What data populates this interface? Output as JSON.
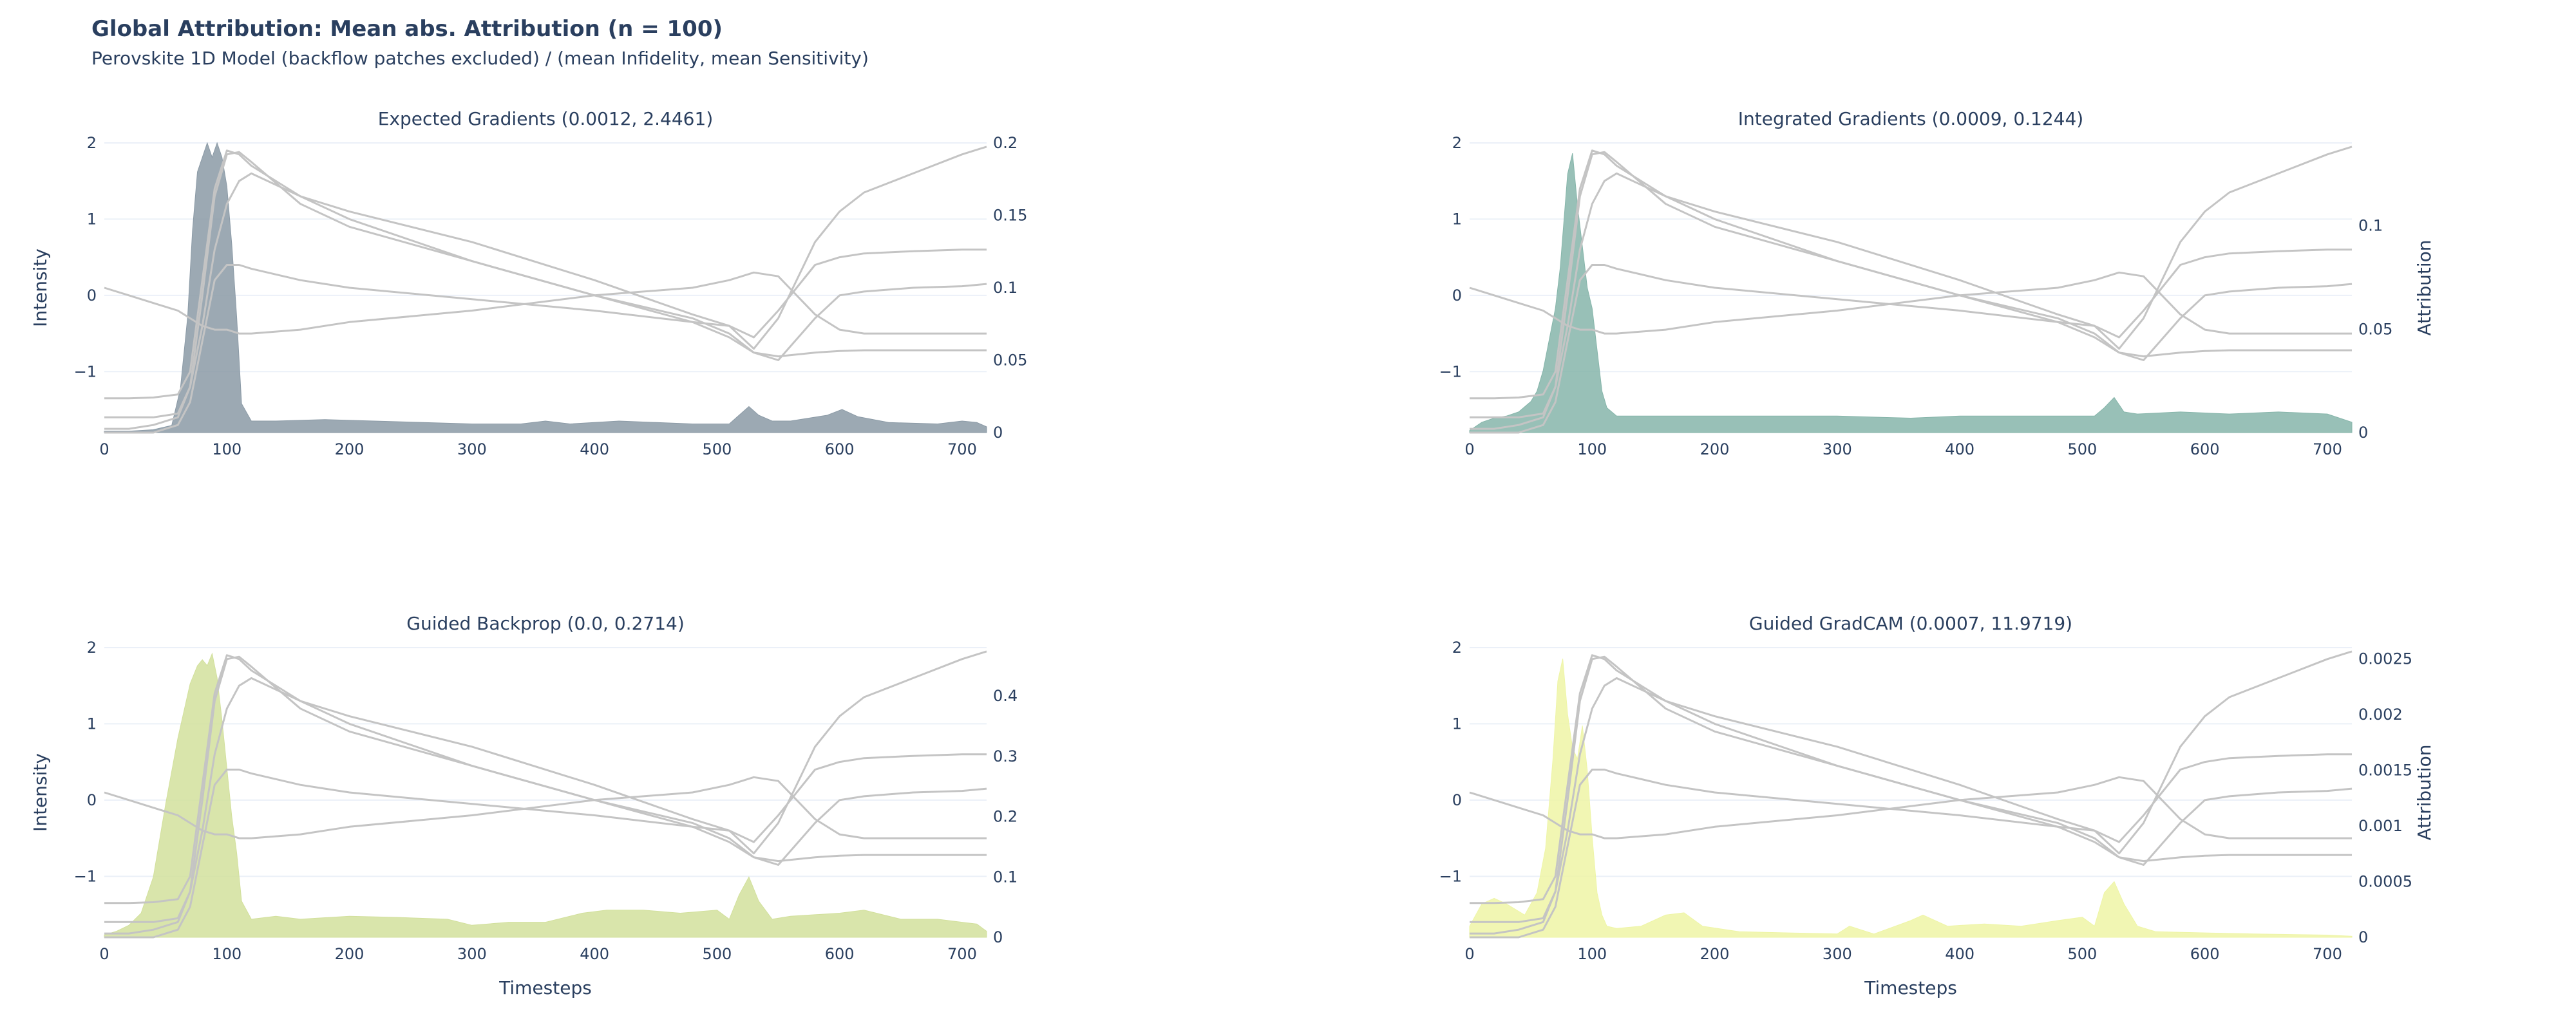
{
  "figure": {
    "title": "Global Attribution: Mean abs. Attribution (n = 100)",
    "subtitle": "Perovskite 1D Model (backflow patches excluded) / (mean Infidelity, mean Sensitivity)"
  },
  "chart_data": [
    {
      "type": "area",
      "title": "Expected Gradients (0.0012, 2.4461)",
      "xlabel": "",
      "ylabel": "Intensity",
      "y2label": "",
      "xlim": [
        0,
        720
      ],
      "ylim": [
        -1.8,
        2.0
      ],
      "y2lim": [
        0,
        0.2
      ],
      "xticks": [
        "0",
        "100",
        "200",
        "300",
        "400",
        "500",
        "600",
        "700"
      ],
      "yticks": [
        "2",
        "1",
        "0",
        "−1"
      ],
      "y2ticks": [
        "0.2",
        "0.15",
        "0.1",
        "0.05",
        "0"
      ],
      "fill_color": "#8b9aa6",
      "attribution": {
        "x": [
          0,
          20,
          40,
          55,
          62,
          68,
          72,
          76,
          80,
          84,
          88,
          92,
          96,
          100,
          104,
          108,
          112,
          120,
          140,
          180,
          220,
          260,
          300,
          340,
          360,
          380,
          420,
          480,
          510,
          518,
          526,
          534,
          545,
          560,
          590,
          602,
          615,
          640,
          680,
          700,
          712,
          720
        ],
        "y": [
          0.001,
          0.001,
          0.002,
          0.005,
          0.03,
          0.08,
          0.14,
          0.18,
          0.19,
          0.2,
          0.19,
          0.2,
          0.19,
          0.17,
          0.13,
          0.08,
          0.02,
          0.008,
          0.008,
          0.009,
          0.008,
          0.007,
          0.006,
          0.006,
          0.008,
          0.006,
          0.008,
          0.006,
          0.006,
          0.012,
          0.018,
          0.012,
          0.008,
          0.008,
          0.012,
          0.016,
          0.011,
          0.007,
          0.006,
          0.008,
          0.007,
          0.004
        ]
      }
    },
    {
      "type": "area",
      "title": "Integrated Gradients (0.0009, 0.1244)",
      "xlabel": "",
      "ylabel": "",
      "y2label": "Attribution",
      "xlim": [
        0,
        720
      ],
      "ylim": [
        -1.8,
        2.0
      ],
      "y2lim": [
        0,
        0.14
      ],
      "xticks": [
        "0",
        "100",
        "200",
        "300",
        "400",
        "500",
        "600",
        "700"
      ],
      "yticks": [
        "2",
        "1",
        "0",
        "−1"
      ],
      "y2ticks": [
        "0.1",
        "0.05",
        "0"
      ],
      "fill_color": "#86b5aa",
      "attribution": {
        "x": [
          0,
          10,
          20,
          30,
          40,
          50,
          55,
          60,
          65,
          70,
          74,
          78,
          80,
          84,
          88,
          92,
          96,
          100,
          104,
          108,
          112,
          120,
          140,
          180,
          220,
          300,
          360,
          400,
          440,
          480,
          510,
          518,
          526,
          534,
          545,
          580,
          620,
          660,
          700,
          720
        ],
        "y": [
          0.001,
          0.005,
          0.007,
          0.008,
          0.01,
          0.015,
          0.02,
          0.03,
          0.045,
          0.06,
          0.08,
          0.11,
          0.125,
          0.135,
          0.11,
          0.09,
          0.07,
          0.06,
          0.04,
          0.02,
          0.012,
          0.008,
          0.008,
          0.008,
          0.008,
          0.008,
          0.007,
          0.008,
          0.008,
          0.008,
          0.008,
          0.012,
          0.017,
          0.01,
          0.009,
          0.01,
          0.009,
          0.01,
          0.009,
          0.005
        ]
      }
    },
    {
      "type": "area",
      "title": "Guided Backprop (0.0, 0.2714)",
      "xlabel": "Timesteps",
      "ylabel": "Intensity",
      "y2label": "",
      "xlim": [
        0,
        720
      ],
      "ylim": [
        -1.8,
        2.0
      ],
      "y2lim": [
        0,
        0.48
      ],
      "xticks": [
        "0",
        "100",
        "200",
        "300",
        "400",
        "500",
        "600",
        "700"
      ],
      "yticks": [
        "2",
        "1",
        "0",
        "−1"
      ],
      "y2ticks": [
        "0.4",
        "0.3",
        "0.2",
        "0.1",
        "0"
      ],
      "fill_color": "#d2e09c",
      "attribution": {
        "x": [
          0,
          10,
          20,
          30,
          40,
          50,
          60,
          70,
          76,
          80,
          84,
          88,
          92,
          96,
          100,
          104,
          108,
          112,
          120,
          140,
          160,
          200,
          240,
          280,
          300,
          330,
          360,
          390,
          410,
          440,
          470,
          500,
          510,
          518,
          526,
          534,
          545,
          560,
          600,
          620,
          650,
          680,
          700,
          712,
          720
        ],
        "y": [
          0.004,
          0.01,
          0.02,
          0.04,
          0.1,
          0.22,
          0.33,
          0.42,
          0.45,
          0.46,
          0.45,
          0.47,
          0.43,
          0.36,
          0.28,
          0.2,
          0.14,
          0.06,
          0.03,
          0.035,
          0.03,
          0.035,
          0.033,
          0.03,
          0.02,
          0.025,
          0.025,
          0.04,
          0.045,
          0.045,
          0.04,
          0.045,
          0.03,
          0.07,
          0.1,
          0.06,
          0.03,
          0.035,
          0.04,
          0.045,
          0.03,
          0.03,
          0.025,
          0.022,
          0.01
        ]
      }
    },
    {
      "type": "area",
      "title": "Guided GradCAM (0.0007, 11.9719)",
      "xlabel": "Timesteps",
      "ylabel": "",
      "y2label": "Attribution",
      "xlim": [
        0,
        720
      ],
      "ylim": [
        -1.8,
        2.0
      ],
      "y2lim": [
        0,
        0.0026
      ],
      "xticks": [
        "0",
        "100",
        "200",
        "300",
        "400",
        "500",
        "600",
        "700"
      ],
      "yticks": [
        "2",
        "1",
        "0",
        "−1"
      ],
      "y2ticks": [
        "0.0025",
        "0.002",
        "0.0015",
        "0.001",
        "0.0005",
        "0"
      ],
      "fill_color": "#eef5a6",
      "attribution": {
        "x": [
          0,
          10,
          20,
          30,
          45,
          55,
          62,
          68,
          72,
          76,
          80,
          84,
          88,
          92,
          96,
          100,
          104,
          108,
          112,
          120,
          140,
          160,
          175,
          190,
          220,
          260,
          300,
          310,
          330,
          360,
          370,
          390,
          420,
          450,
          480,
          500,
          510,
          518,
          526,
          534,
          545,
          560,
          600,
          640,
          700,
          720
        ],
        "y": [
          0.0001,
          0.0003,
          0.00035,
          0.0003,
          0.0002,
          0.0004,
          0.0008,
          0.0016,
          0.0023,
          0.0025,
          0.002,
          0.0017,
          0.0016,
          0.0019,
          0.0015,
          0.0009,
          0.0004,
          0.0002,
          0.0001,
          8e-05,
          0.0001,
          0.0002,
          0.00022,
          0.0001,
          5e-05,
          4e-05,
          3e-05,
          0.0001,
          3e-05,
          0.00015,
          0.0002,
          0.0001,
          0.00012,
          0.0001,
          0.00015,
          0.00018,
          0.0001,
          0.0004,
          0.0005,
          0.0003,
          0.0001,
          5e-05,
          4e-05,
          3e-05,
          2e-05,
          1e-05
        ]
      }
    }
  ],
  "spectra": {
    "color": "#c4c4c4",
    "x": [
      0,
      20,
      40,
      60,
      70,
      80,
      90,
      100,
      110,
      120,
      160,
      200,
      300,
      400,
      480,
      510,
      530,
      550,
      580,
      600,
      620,
      660,
      700,
      720
    ],
    "curves": [
      [
        -1.35,
        -1.35,
        -1.34,
        -1.3,
        -1.0,
        0.2,
        1.4,
        1.9,
        1.85,
        1.7,
        1.3,
        1.1,
        0.7,
        0.2,
        -0.25,
        -0.4,
        -0.7,
        -0.3,
        0.7,
        1.1,
        1.35,
        1.6,
        1.85,
        1.95
      ],
      [
        -1.6,
        -1.6,
        -1.6,
        -1.55,
        -1.2,
        0.0,
        1.3,
        1.85,
        1.88,
        1.75,
        1.2,
        0.9,
        0.45,
        0.0,
        -0.35,
        -0.55,
        -0.75,
        -0.8,
        -0.75,
        -0.73,
        -0.72,
        -0.72,
        -0.72,
        -0.72
      ],
      [
        -1.8,
        -1.8,
        -1.8,
        -1.7,
        -1.4,
        -0.6,
        0.2,
        0.4,
        0.4,
        0.35,
        0.2,
        0.1,
        -0.05,
        -0.2,
        -0.35,
        -0.4,
        -0.55,
        -0.2,
        0.4,
        0.5,
        0.55,
        0.58,
        0.6,
        0.6
      ],
      [
        0.1,
        0.0,
        -0.1,
        -0.2,
        -0.3,
        -0.4,
        -0.45,
        -0.45,
        -0.5,
        -0.5,
        -0.45,
        -0.35,
        -0.2,
        0.0,
        0.1,
        0.2,
        0.3,
        0.25,
        -0.25,
        -0.45,
        -0.5,
        -0.5,
        -0.5,
        -0.5
      ],
      [
        -1.75,
        -1.75,
        -1.7,
        -1.6,
        -1.2,
        -0.4,
        0.6,
        1.2,
        1.5,
        1.6,
        1.3,
        1.0,
        0.45,
        0.0,
        -0.3,
        -0.5,
        -0.75,
        -0.85,
        -0.3,
        0.0,
        0.05,
        0.1,
        0.12,
        0.15
      ]
    ]
  }
}
